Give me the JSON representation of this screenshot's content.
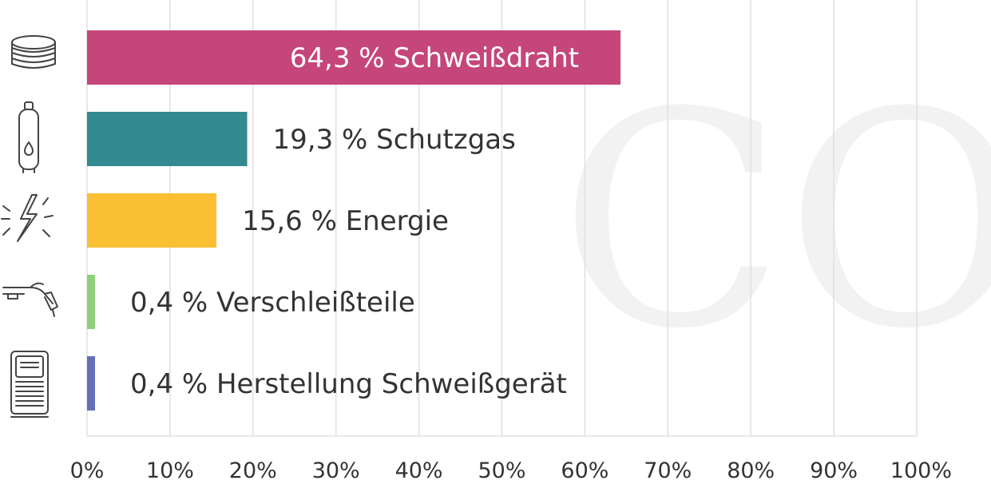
{
  "watermark": "CO",
  "colors": {
    "grid": "#e0e0e0",
    "text": "#333333"
  },
  "chart_data": {
    "type": "bar",
    "orientation": "horizontal",
    "xlim": [
      0,
      100
    ],
    "grid": true,
    "ticks": [
      "0%",
      "10%",
      "20%",
      "30%",
      "40%",
      "50%",
      "60%",
      "70%",
      "80%",
      "90%",
      "100%"
    ],
    "bars": [
      {
        "value": 64.3,
        "label": "64,3 % Schweißdraht",
        "color": "#c5467a",
        "icon": "wire-spool-icon"
      },
      {
        "value": 19.3,
        "label": "19,3 % Schutzgas",
        "color": "#338990",
        "icon": "gas-cylinder-icon"
      },
      {
        "value": 15.6,
        "label": "15,6 % Energie",
        "color": "#fbbf33",
        "icon": "lightning-icon"
      },
      {
        "value": 0.4,
        "label": "0,4 % Verschleißteile",
        "color": "#8fd07e",
        "icon": "welding-torch-icon"
      },
      {
        "value": 0.4,
        "label": "0,4 % Herstellung Schweißgerät",
        "color": "#6571b6",
        "icon": "welding-machine-icon"
      }
    ]
  }
}
